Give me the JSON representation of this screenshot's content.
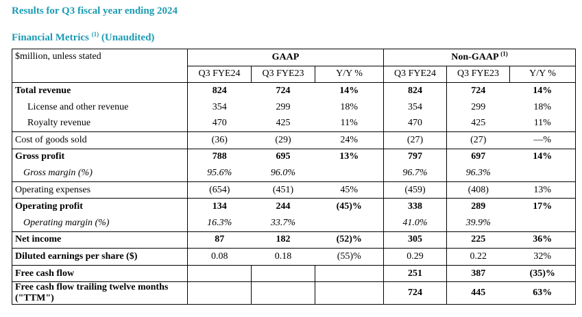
{
  "headings": {
    "title": "Results for Q3 fiscal year ending 2024",
    "subtitle_main": "Financial Metrics",
    "subtitle_note": "(1)",
    "subtitle_tail": " (Unaudited)"
  },
  "table": {
    "unit_label": "$million, unless stated",
    "gaap_label": "GAAP",
    "nongaap_label": "Non-GAAP",
    "nongaap_note": "(1)",
    "subheaders": [
      "Q3 FYE24",
      "Q3 FYE23",
      "Y/Y %",
      "Q3 FYE24",
      "Q3 FYE23",
      "Y/Y %"
    ],
    "rows": [
      {
        "label": "Total revenue",
        "values": [
          "824",
          "724",
          "14%",
          "824",
          "724",
          "14%"
        ]
      },
      {
        "label": "License and other revenue",
        "values": [
          "354",
          "299",
          "18%",
          "354",
          "299",
          "18%"
        ]
      },
      {
        "label": "Royalty revenue",
        "values": [
          "470",
          "425",
          "11%",
          "470",
          "425",
          "11%"
        ]
      },
      {
        "label": "Cost of goods sold",
        "values": [
          "(36)",
          "(29)",
          "24%",
          "(27)",
          "(27)",
          "—%"
        ]
      },
      {
        "label": "Gross profit",
        "values": [
          "788",
          "695",
          "13%",
          "797",
          "697",
          "14%"
        ]
      },
      {
        "label": "Gross margin (%)",
        "values": [
          "95.6%",
          "96.0%",
          "",
          "96.7%",
          "96.3%",
          ""
        ]
      },
      {
        "label": "Operating expenses",
        "values": [
          "(654)",
          "(451)",
          "45%",
          "(459)",
          "(408)",
          "13%"
        ]
      },
      {
        "label": "Operating profit",
        "values": [
          "134",
          "244",
          "(45)%",
          "338",
          "289",
          "17%"
        ]
      },
      {
        "label": "Operating margin (%)",
        "values": [
          "16.3%",
          "33.7%",
          "",
          "41.0%",
          "39.9%",
          ""
        ]
      },
      {
        "label": "Net income",
        "values": [
          "87",
          "182",
          "(52)%",
          "305",
          "225",
          "36%"
        ]
      },
      {
        "label": "Diluted earnings per share ($)",
        "values": [
          "0.08",
          "0.18",
          "(55)%",
          "0.29",
          "0.22",
          "32%"
        ]
      },
      {
        "label": "Free cash flow",
        "values": [
          "",
          "",
          "",
          "251",
          "387",
          "(35)%"
        ]
      },
      {
        "label": "Free cash flow trailing twelve months (\"TTM\")",
        "values": [
          "",
          "",
          "",
          "724",
          "445",
          "63%"
        ]
      }
    ]
  },
  "colors": {
    "heading": "#1a9bb3",
    "text": "#000000",
    "rule": "#000000"
  }
}
